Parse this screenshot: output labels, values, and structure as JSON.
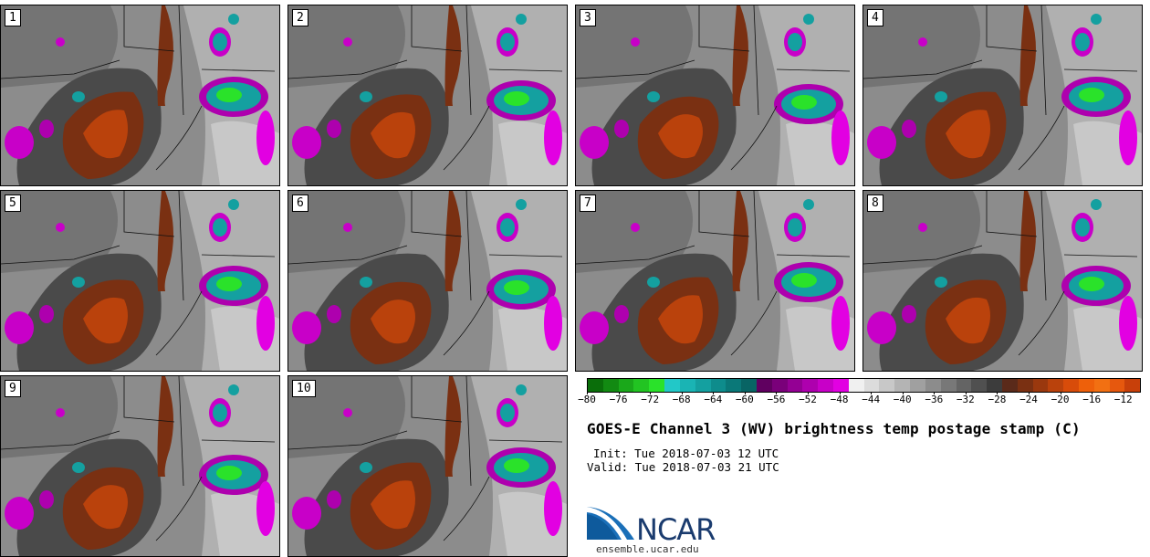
{
  "panels": [
    {
      "label": "1"
    },
    {
      "label": "2"
    },
    {
      "label": "3"
    },
    {
      "label": "4"
    },
    {
      "label": "5"
    },
    {
      "label": "6"
    },
    {
      "label": "7"
    },
    {
      "label": "8"
    },
    {
      "label": "9"
    },
    {
      "label": "10"
    }
  ],
  "colorbar": {
    "colors": [
      "#0a6e0a",
      "#128a12",
      "#1aa81a",
      "#22c422",
      "#2ae22a",
      "#22c8c8",
      "#1ab4b4",
      "#14a0a0",
      "#0e8c8c",
      "#0a7878",
      "#086464",
      "#600060",
      "#7a007a",
      "#940094",
      "#ae00ae",
      "#c800c8",
      "#e200e2",
      "#f0f0f0",
      "#dcdcdc",
      "#c8c8c8",
      "#b4b4b4",
      "#a0a0a0",
      "#8c8c8c",
      "#787878",
      "#646464",
      "#505050",
      "#3c3c3c",
      "#5a2a1a",
      "#7a3012",
      "#9a380e",
      "#ba420c",
      "#d84c0a",
      "#ee600a",
      "#f27012",
      "#e6580e",
      "#c8400a"
    ],
    "ticks": [
      "−80",
      "−76",
      "−72",
      "−68",
      "−64",
      "−60",
      "−56",
      "−52",
      "−48",
      "−44",
      "−40",
      "−36",
      "−32",
      "−28",
      "−24",
      "−20",
      "−16",
      "−12"
    ]
  },
  "title": "GOES-E Channel 3 (WV) brightness temp postage stamp (C)",
  "init": "Init: Tue 2018-07-03 12 UTC",
  "valid": "Valid: Tue 2018-07-03 21 UTC",
  "logo_text": "NCAR",
  "site": "ensemble.ucar.edu"
}
